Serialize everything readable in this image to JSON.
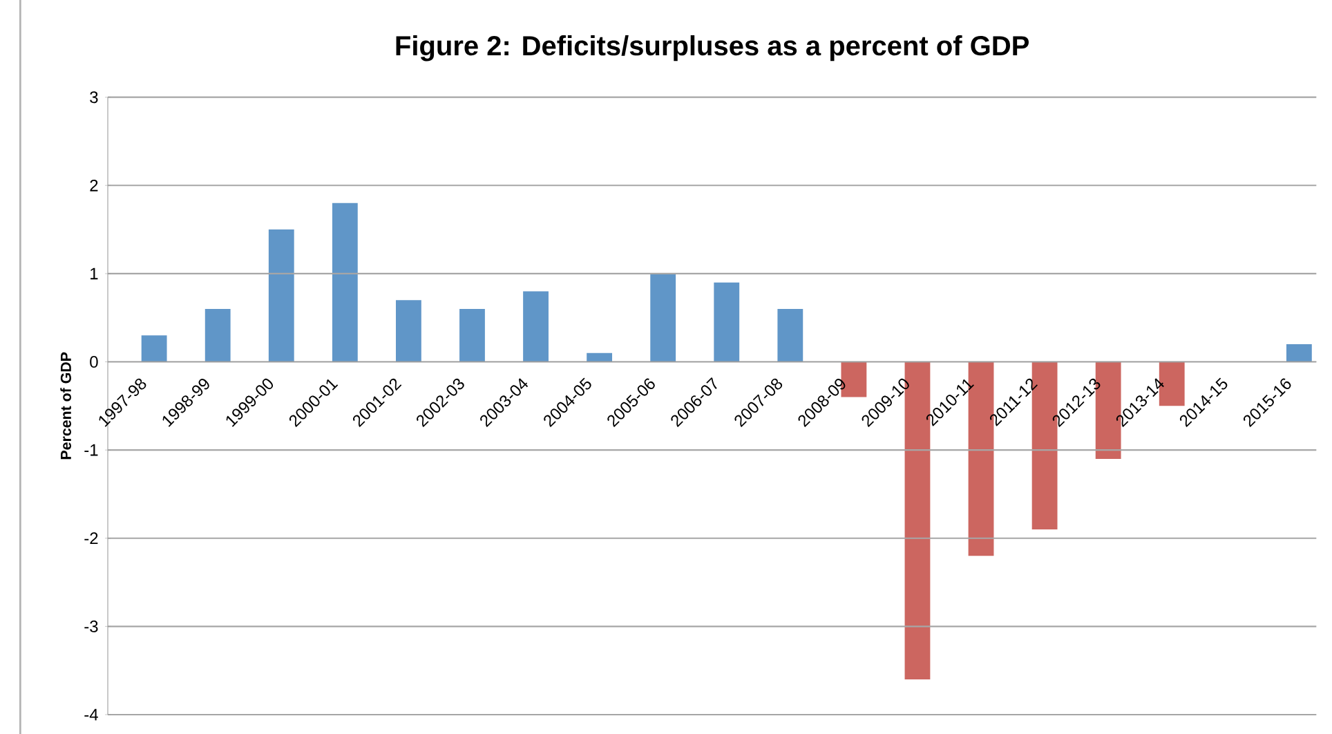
{
  "chart_data": {
    "type": "bar",
    "title": "Figure 2: Deficits/surpluses as a percent of GDP",
    "ylabel": "Percent of GDP",
    "categories": [
      "1997-98",
      "1998-99",
      "1999-00",
      "2000-01",
      "2001-02",
      "2002-03",
      "2003-04",
      "2004-05",
      "2005-06",
      "2006-07",
      "2007-08",
      "2008-09",
      "2009-10",
      "2010-11",
      "2011-12",
      "2012-13",
      "2013-14",
      "2014-15",
      "2015-16"
    ],
    "values": [
      0.3,
      0.6,
      1.5,
      1.8,
      0.7,
      0.6,
      0.8,
      0.1,
      1.0,
      0.9,
      0.6,
      -0.4,
      -3.6,
      -2.2,
      -1.9,
      -1.1,
      -0.5,
      null,
      0.2
    ],
    "colors": [
      "#6096c8",
      "#6096c8",
      "#6096c8",
      "#6096c8",
      "#6096c8",
      "#6096c8",
      "#6096c8",
      "#6096c8",
      "#6096c8",
      "#6096c8",
      "#6096c8",
      "#cc6660",
      "#cc6660",
      "#cc6660",
      "#cc6660",
      "#cc6660",
      "#cc6660",
      null,
      "#6096c8"
    ],
    "ylim": [
      -4,
      3
    ],
    "yticks": [
      -4,
      -3,
      -2,
      -1,
      0,
      1,
      2,
      3
    ],
    "grid": "y"
  }
}
